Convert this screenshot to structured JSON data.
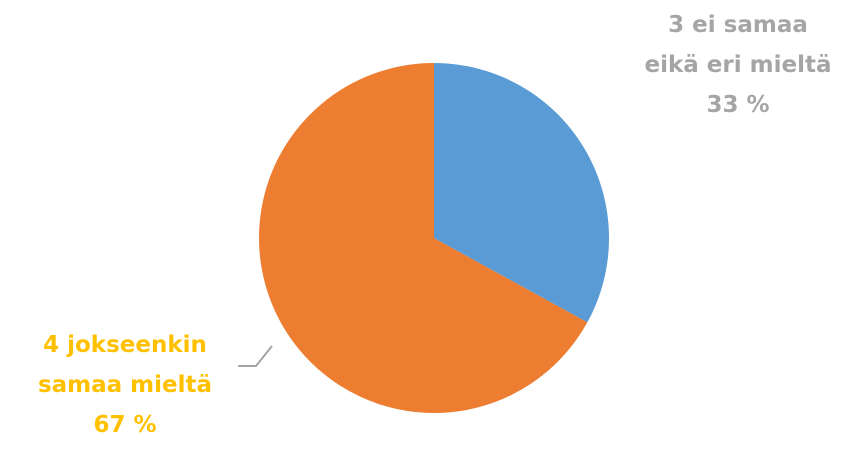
{
  "chart_data": {
    "type": "pie",
    "categories": [
      "3 ei samaa\neikä eri mieltä",
      "4 jokseenkin\nsamaa mieltä"
    ],
    "values": [
      33,
      67
    ],
    "value_labels": [
      "33 %",
      "67 %"
    ],
    "colors": [
      "#5b9bd5",
      "#ed7d31"
    ],
    "label_colors": [
      "#a5a5a5",
      "#ffc000"
    ]
  }
}
